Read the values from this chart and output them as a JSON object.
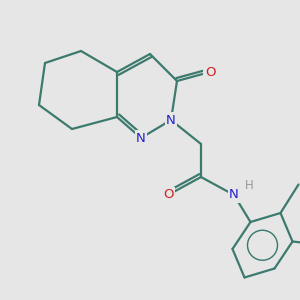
{
  "bg_color": "#e6e6e6",
  "bond_color": "#3d7a6e",
  "bond_width": 1.6,
  "N_color": "#2222cc",
  "O_color": "#cc2222",
  "H_color": "#999999",
  "figsize": [
    3.0,
    3.0
  ],
  "dpi": 100,
  "xlim": [
    0,
    10
  ],
  "ylim": [
    0,
    10
  ]
}
